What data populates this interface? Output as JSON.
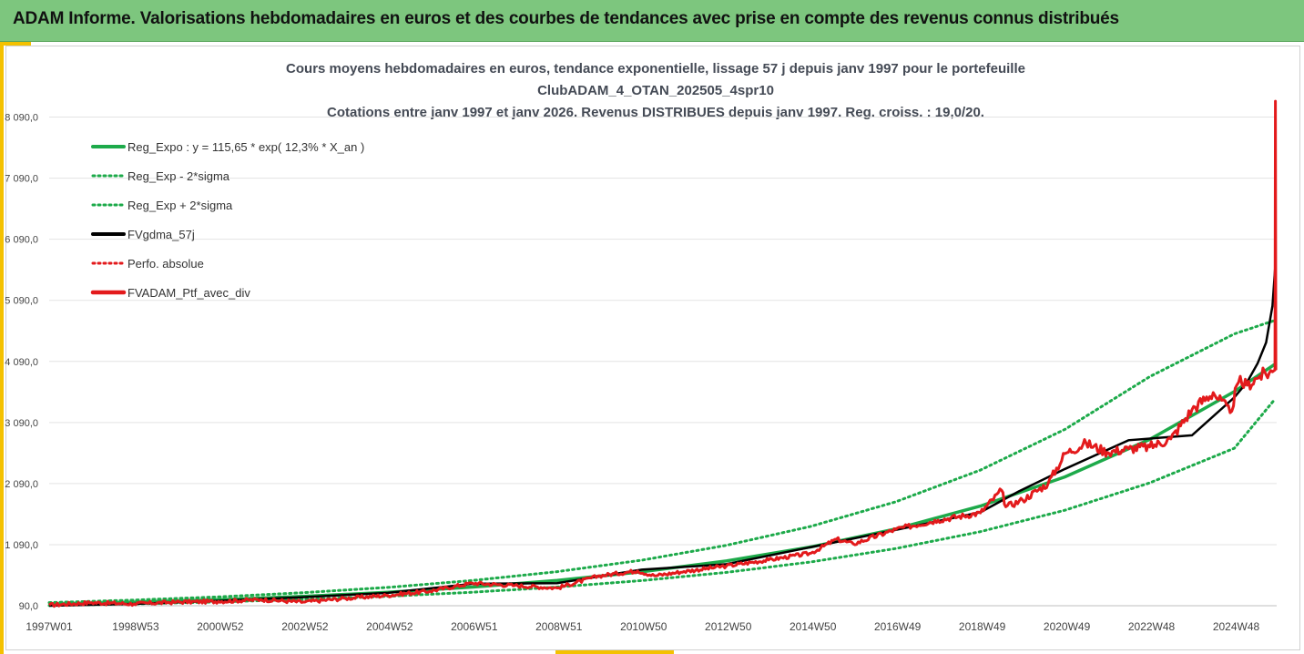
{
  "banner": {
    "title": "ADAM Informe. Valorisations hebdomadaires en euros et des courbes de tendances avec prise en compte des revenus connus distribués"
  },
  "colors": {
    "banner_bg": "#7dc67e",
    "accent": "#f4c100",
    "trend": "#1daa4a",
    "smoothed": "#000000",
    "portfolio": "#e31a1c"
  },
  "chart_data": {
    "type": "line",
    "title": [
      "Cours moyens hebdomadaires  en euros, tendance exponentielle, lissage 57 j depuis janv 1997 pour le portefeuille",
      "ClubADAM_4_OTAN_202505_4spr10",
      "Cotations entre janv 1997 et janv 2026. Revenus DISTRIBUES depuis janv 1997. Reg. croiss. : 19,0/20."
    ],
    "xlabel": "",
    "ylabel": "",
    "ylim": [
      90,
      8590
    ],
    "y_ticks": [
      "90,0",
      "1 090,0",
      "2 090,0",
      "3 090,0",
      "4 090,0",
      "5 090,0",
      "6 090,0",
      "7 090,0",
      "8 090,0"
    ],
    "x_ticks": [
      "1997W01",
      "1998W53",
      "2000W52",
      "2002W52",
      "2004W52",
      "2006W51",
      "2008W51",
      "2010W50",
      "2012W50",
      "2014W50",
      "2016W49",
      "2018W49",
      "2020W49",
      "2022W48",
      "2024W48"
    ],
    "x_range_years": [
      1997.0,
      2026.0
    ],
    "grid": "horizontal",
    "legend_placement": "top-left",
    "legend": [
      {
        "label": "Reg_Expo : y = 115,65 * exp( 12,3% *  X_an )",
        "series": "reg_expo"
      },
      {
        "label": "Reg_Exp - 2*sigma",
        "series": "reg_minus"
      },
      {
        "label": "Reg_Exp + 2*sigma",
        "series": "reg_plus"
      },
      {
        "label": "FVgdma_57j",
        "series": "fvgdma"
      },
      {
        "label": "Perfo. absolue",
        "series": "perfo"
      },
      {
        "label": "FVADAM_Ptf_avec_div",
        "series": "fvadam"
      }
    ],
    "series": {
      "reg_expo": {
        "x": [
          1997,
          1999,
          2001,
          2003,
          2005,
          2007,
          2009,
          2011,
          2013,
          2015,
          2017,
          2019,
          2021,
          2023,
          2025,
          2025.95
        ],
        "y": [
          116,
          148,
          189,
          242,
          309,
          395,
          505,
          645,
          824,
          1054,
          1347,
          1722,
          2200,
          2813,
          3596,
          4040
        ]
      },
      "reg_minus": {
        "x": [
          1997,
          1999,
          2001,
          2003,
          2005,
          2007,
          2009,
          2011,
          2013,
          2015,
          2017,
          2019,
          2021,
          2023,
          2025,
          2025.95
        ],
        "y": [
          95,
          120,
          152,
          193,
          245,
          311,
          395,
          501,
          636,
          808,
          1026,
          1303,
          1655,
          2101,
          2669,
          3465
        ]
      },
      "reg_plus": {
        "x": [
          1997,
          1999,
          2001,
          2003,
          2005,
          2007,
          2009,
          2011,
          2013,
          2015,
          2017,
          2019,
          2021,
          2023,
          2025,
          2025.95
        ],
        "y": [
          141,
          182,
          235,
          303,
          390,
          503,
          648,
          836,
          1078,
          1390,
          1792,
          2310,
          2978,
          3840,
          4540,
          4760
        ]
      },
      "fvgdma": {
        "x": [
          1997,
          1999,
          2001,
          2003,
          2005,
          2007,
          2009,
          2011,
          2013,
          2015,
          2017,
          2019,
          2019.9,
          2021,
          2022.5,
          2024,
          2025,
          2025.3,
          2025.55,
          2025.75,
          2025.9,
          2025.97
        ],
        "y": [
          90,
          120,
          170,
          230,
          300,
          450,
          460,
          680,
          770,
          1050,
          1330,
          1620,
          1960,
          2330,
          2800,
          2880,
          3500,
          3750,
          4060,
          4400,
          5000,
          5680
        ]
      },
      "fvadam": {
        "x": [
          1997,
          1998,
          1999,
          2000,
          2001,
          2002,
          2003,
          2004,
          2005,
          2006,
          2007,
          2008,
          2009,
          2010,
          2010.9,
          2011.3,
          2012,
          2013,
          2014,
          2015,
          2015.6,
          2016,
          2017,
          2018,
          2019,
          2019.5,
          2019.6,
          2020,
          2020.6,
          2021,
          2021.5,
          2022,
          2022.5,
          2023,
          2023.5,
          2024,
          2024.5,
          2024.9,
          2025.1,
          2025.3,
          2025.6,
          2025.9,
          2025.96,
          2025.97,
          2025.98
        ],
        "y": [
          100,
          140,
          120,
          150,
          160,
          190,
          150,
          210,
          260,
          330,
          460,
          420,
          380,
          580,
          660,
          580,
          650,
          740,
          840,
          950,
          1180,
          1100,
          1340,
          1490,
          1610,
          1980,
          1710,
          1820,
          2090,
          2580,
          2750,
          2600,
          2660,
          2690,
          2820,
          3300,
          3580,
          3250,
          3750,
          3700,
          3850,
          3920,
          3950,
          8350,
          3950
        ]
      }
    }
  }
}
